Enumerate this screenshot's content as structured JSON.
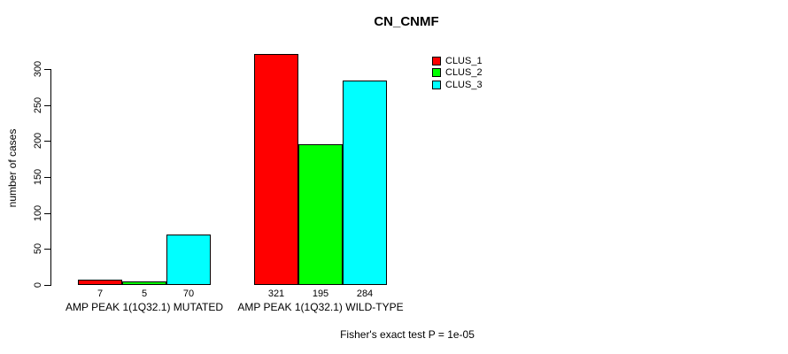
{
  "title": "CN_CNMF",
  "y_axis": {
    "label": "number of cases",
    "ticks": [
      0,
      50,
      100,
      150,
      200,
      250,
      300
    ]
  },
  "legend": {
    "position": "top-right",
    "entries": [
      {
        "name": "CLUS_1",
        "color": "#FF0000"
      },
      {
        "name": "CLUS_2",
        "color": "#00FF00"
      },
      {
        "name": "CLUS_3",
        "color": "#00FFFF"
      }
    ]
  },
  "footer": "Fisher's exact test P = 1e-05",
  "chart_data": {
    "type": "bar",
    "title": "CN_CNMF",
    "xlabel": "",
    "ylabel": "number of cases",
    "ylim": [
      0,
      300
    ],
    "grid": false,
    "legend_position": "top-right",
    "categories": [
      "AMP PEAK 1(1Q32.1) MUTATED",
      "AMP PEAK 1(1Q32.1) WILD-TYPE"
    ],
    "series": [
      {
        "name": "CLUS_1",
        "color": "#FF0000",
        "values": [
          7,
          321
        ]
      },
      {
        "name": "CLUS_2",
        "color": "#00FF00",
        "values": [
          5,
          195
        ]
      },
      {
        "name": "CLUS_3",
        "color": "#00FFFF",
        "values": [
          70,
          284
        ]
      }
    ],
    "bar_value_labels": [
      [
        7,
        5,
        70
      ],
      [
        321,
        195,
        284
      ]
    ],
    "annotation": "Fisher's exact test P = 1e-05"
  }
}
